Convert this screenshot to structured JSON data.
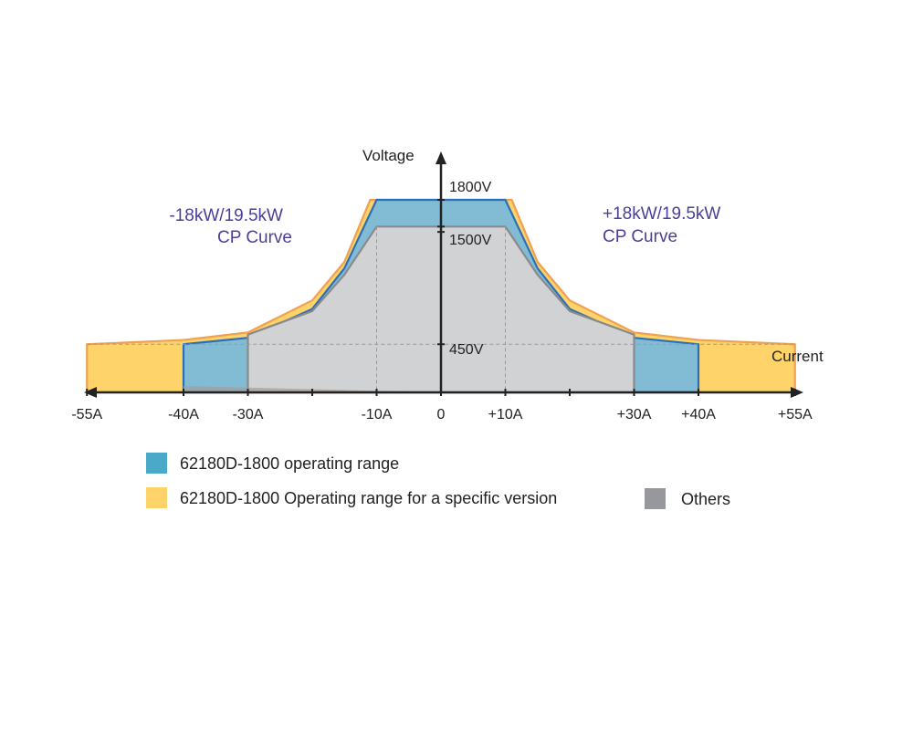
{
  "chart_data": {
    "type": "area",
    "xlabel": "Current",
    "ylabel": "Voltage",
    "x_ticks": [
      "-55A",
      "-40A",
      "-30A",
      "-10A",
      "0",
      "+10A",
      "+30A",
      "+40A",
      "+55A"
    ],
    "x_tick_values": [
      -55,
      -40,
      -30,
      -10,
      0,
      10,
      30,
      40,
      55
    ],
    "y_ticks": [
      "450V",
      "1500V",
      "1800V"
    ],
    "y_tick_values": [
      450,
      1500,
      1800
    ],
    "xlim": [
      -55,
      55
    ],
    "ylim": [
      0,
      1800
    ],
    "annotations": {
      "cp_negative_line1": "-18kW/19.5kW",
      "cp_negative_line2": "CP Curve",
      "cp_positive_line1": "+18kW/19.5kW",
      "cp_positive_line2": "CP Curve"
    },
    "series": [
      {
        "name": "62180D-1800 Operating range for a specific version",
        "color": "#fdd36a",
        "edge_color": "#f0a050",
        "points": [
          [
            -55,
            0
          ],
          [
            -55,
            450
          ],
          [
            -40,
            490
          ],
          [
            -30,
            560
          ],
          [
            -20,
            860
          ],
          [
            -15,
            1220
          ],
          [
            -11,
            1800
          ],
          [
            11,
            1800
          ],
          [
            15,
            1220
          ],
          [
            20,
            860
          ],
          [
            30,
            560
          ],
          [
            40,
            490
          ],
          [
            55,
            450
          ],
          [
            55,
            0
          ]
        ]
      },
      {
        "name": "62180D-1800 operating range",
        "color": "#82bcd4",
        "edge_color": "#2a70b8",
        "points": [
          [
            -40,
            0
          ],
          [
            -40,
            450
          ],
          [
            -30,
            510
          ],
          [
            -20,
            780
          ],
          [
            -15,
            1160
          ],
          [
            -10,
            1800
          ],
          [
            10,
            1800
          ],
          [
            15,
            1160
          ],
          [
            20,
            780
          ],
          [
            30,
            510
          ],
          [
            40,
            450
          ],
          [
            40,
            0
          ]
        ]
      },
      {
        "name": "Others",
        "color": "#d1d2d4",
        "edge_color": "#8a8a8c",
        "points": [
          [
            -30,
            0
          ],
          [
            -30,
            540
          ],
          [
            -20,
            760
          ],
          [
            -15,
            1100
          ],
          [
            -10,
            1550
          ],
          [
            10,
            1550
          ],
          [
            15,
            1100
          ],
          [
            20,
            760
          ],
          [
            30,
            540
          ],
          [
            30,
            0
          ]
        ]
      }
    ],
    "legend": [
      {
        "label": "62180D-1800 operating range",
        "color": "#4aa8c8"
      },
      {
        "label": "62180D-1800 Operating range for a specific version",
        "color": "#fdd36a"
      },
      {
        "label": "Others",
        "color": "#97989b"
      }
    ]
  }
}
